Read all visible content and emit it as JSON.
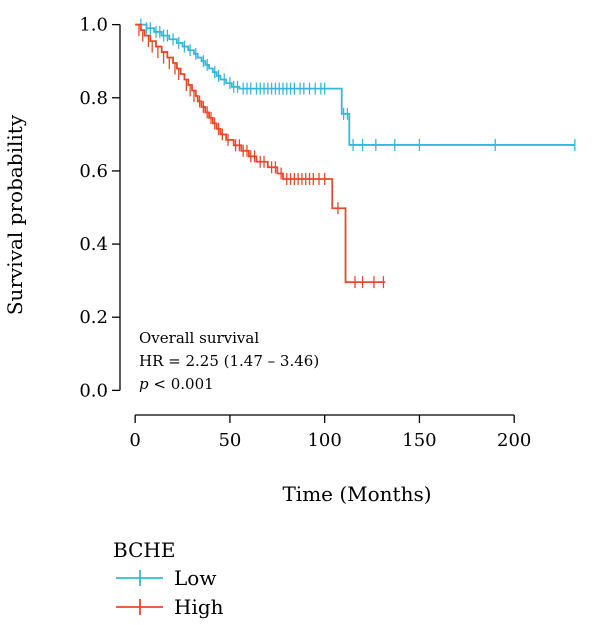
{
  "chart_data": {
    "type": "line",
    "subtype": "kaplan-meier",
    "title": "",
    "xlabel": "Time (Months)",
    "ylabel": "Survival probability",
    "xlim": [
      -8,
      240
    ],
    "ylim": [
      -0.04,
      1.04
    ],
    "x_ticks": [
      0,
      50,
      100,
      150,
      200
    ],
    "y_ticks": [
      0.0,
      0.2,
      0.4,
      0.6,
      0.8,
      1.0
    ],
    "y_tick_labels": [
      "0.0",
      "0.2",
      "0.4",
      "0.6",
      "0.8",
      "1.0"
    ],
    "grid": false,
    "annotation": {
      "line1": "Overall survival",
      "line2": "HR = 2.25 (1.47 – 3.46)",
      "line3_italic": "p",
      "line3_rest": " < 0.001"
    },
    "legend": {
      "title": "BCHE",
      "placement": "bottom-left",
      "entries": [
        "Low",
        "High"
      ]
    },
    "series": [
      {
        "name": "Low",
        "color": "#35b8d8",
        "steps": [
          [
            0,
            1.0
          ],
          [
            6,
            0.99
          ],
          [
            10,
            0.98
          ],
          [
            14,
            0.97
          ],
          [
            18,
            0.96
          ],
          [
            22,
            0.95
          ],
          [
            25,
            0.94
          ],
          [
            28,
            0.93
          ],
          [
            31,
            0.92
          ],
          [
            33,
            0.91
          ],
          [
            35,
            0.9
          ],
          [
            37,
            0.89
          ],
          [
            39,
            0.88
          ],
          [
            41,
            0.87
          ],
          [
            43,
            0.86
          ],
          [
            45,
            0.85
          ],
          [
            48,
            0.84
          ],
          [
            51,
            0.83
          ],
          [
            55,
            0.825
          ],
          [
            109,
            0.756
          ],
          [
            113,
            0.671
          ],
          [
            232,
            0.671
          ]
        ],
        "censored": [
          [
            3,
            1.0
          ],
          [
            6,
            0.99
          ],
          [
            8,
            0.99
          ],
          [
            11,
            0.98
          ],
          [
            13,
            0.98
          ],
          [
            15,
            0.97
          ],
          [
            17,
            0.97
          ],
          [
            20,
            0.96
          ],
          [
            23,
            0.95
          ],
          [
            26,
            0.94
          ],
          [
            29,
            0.93
          ],
          [
            32,
            0.92
          ],
          [
            36,
            0.9
          ],
          [
            38,
            0.89
          ],
          [
            42,
            0.87
          ],
          [
            44,
            0.86
          ],
          [
            47,
            0.85
          ],
          [
            50,
            0.84
          ],
          [
            52,
            0.83
          ],
          [
            54,
            0.83
          ],
          [
            57,
            0.825
          ],
          [
            59,
            0.825
          ],
          [
            61,
            0.825
          ],
          [
            64,
            0.825
          ],
          [
            66,
            0.825
          ],
          [
            68,
            0.825
          ],
          [
            70,
            0.825
          ],
          [
            72,
            0.825
          ],
          [
            74,
            0.825
          ],
          [
            76,
            0.825
          ],
          [
            78,
            0.825
          ],
          [
            80,
            0.825
          ],
          [
            82,
            0.825
          ],
          [
            84,
            0.825
          ],
          [
            87,
            0.825
          ],
          [
            89,
            0.825
          ],
          [
            92,
            0.825
          ],
          [
            95,
            0.825
          ],
          [
            98,
            0.825
          ],
          [
            100,
            0.825
          ],
          [
            110,
            0.756
          ],
          [
            112,
            0.756
          ],
          [
            115,
            0.671
          ],
          [
            120,
            0.671
          ],
          [
            127,
            0.671
          ],
          [
            137,
            0.671
          ],
          [
            150,
            0.671
          ],
          [
            190,
            0.671
          ],
          [
            232,
            0.671
          ]
        ]
      },
      {
        "name": "High",
        "color": "#e8482a",
        "steps": [
          [
            0,
            1.0
          ],
          [
            3,
            0.985
          ],
          [
            5,
            0.97
          ],
          [
            8,
            0.955
          ],
          [
            11,
            0.94
          ],
          [
            14,
            0.925
          ],
          [
            17,
            0.91
          ],
          [
            20,
            0.895
          ],
          [
            22,
            0.88
          ],
          [
            24,
            0.865
          ],
          [
            26,
            0.85
          ],
          [
            28,
            0.835
          ],
          [
            30,
            0.82
          ],
          [
            32,
            0.805
          ],
          [
            33,
            0.79
          ],
          [
            35,
            0.775
          ],
          [
            37,
            0.76
          ],
          [
            39,
            0.745
          ],
          [
            41,
            0.73
          ],
          [
            43,
            0.715
          ],
          [
            45,
            0.7
          ],
          [
            48,
            0.685
          ],
          [
            52,
            0.67
          ],
          [
            56,
            0.655
          ],
          [
            60,
            0.64
          ],
          [
            64,
            0.625
          ],
          [
            70,
            0.61
          ],
          [
            75,
            0.593
          ],
          [
            78,
            0.578
          ],
          [
            104,
            0.498
          ],
          [
            111,
            0.296
          ],
          [
            132,
            0.296
          ]
        ],
        "censored": [
          [
            2,
            0.985
          ],
          [
            4,
            0.97
          ],
          [
            7,
            0.955
          ],
          [
            9,
            0.94
          ],
          [
            12,
            0.925
          ],
          [
            15,
            0.91
          ],
          [
            18,
            0.895
          ],
          [
            21,
            0.88
          ],
          [
            23,
            0.865
          ],
          [
            27,
            0.835
          ],
          [
            29,
            0.82
          ],
          [
            31,
            0.805
          ],
          [
            34,
            0.79
          ],
          [
            36,
            0.775
          ],
          [
            38,
            0.76
          ],
          [
            40,
            0.745
          ],
          [
            42,
            0.73
          ],
          [
            44,
            0.715
          ],
          [
            46,
            0.7
          ],
          [
            49,
            0.685
          ],
          [
            53,
            0.67
          ],
          [
            55,
            0.67
          ],
          [
            57,
            0.655
          ],
          [
            59,
            0.655
          ],
          [
            61,
            0.64
          ],
          [
            63,
            0.64
          ],
          [
            66,
            0.625
          ],
          [
            68,
            0.625
          ],
          [
            72,
            0.61
          ],
          [
            74,
            0.61
          ],
          [
            77,
            0.593
          ],
          [
            80,
            0.578
          ],
          [
            82,
            0.578
          ],
          [
            84,
            0.578
          ],
          [
            86,
            0.578
          ],
          [
            88,
            0.578
          ],
          [
            90,
            0.578
          ],
          [
            92,
            0.578
          ],
          [
            94,
            0.578
          ],
          [
            97,
            0.578
          ],
          [
            100,
            0.578
          ],
          [
            107,
            0.498
          ],
          [
            116,
            0.296
          ],
          [
            120,
            0.296
          ],
          [
            126,
            0.296
          ],
          [
            131,
            0.296
          ]
        ]
      }
    ]
  }
}
